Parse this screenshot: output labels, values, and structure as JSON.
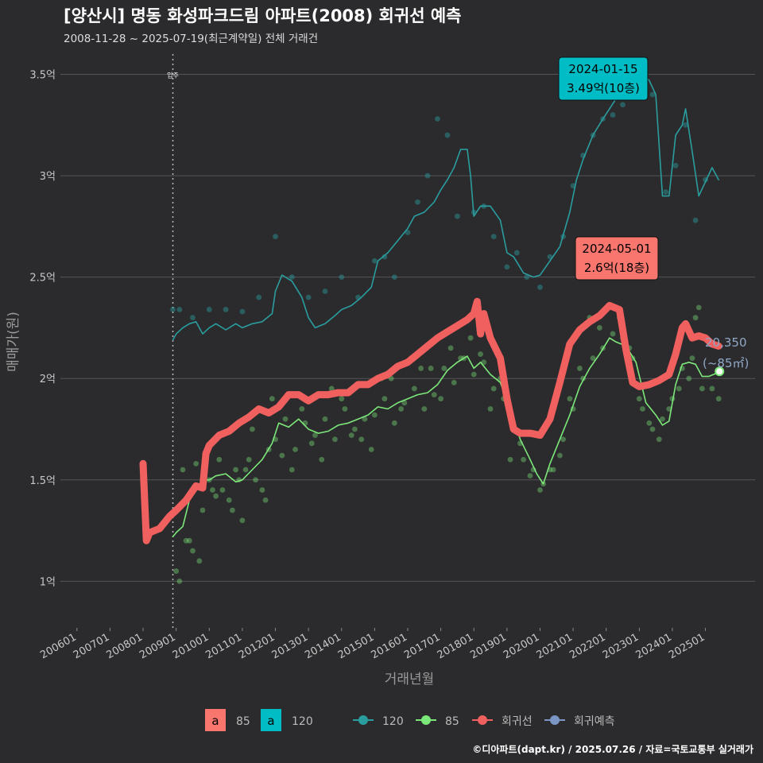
{
  "title": "[양산시] 명동 화성파크드림 아파트(2008) 회귀선 예측",
  "subtitle": "2008-11-28 ~ 2025-07-19(최근계약일) 전체 거래건",
  "caption": "©디아파트(dapt.kr) / 2025.07.26 / 자료=국토교통부 실거래가",
  "colors": {
    "background": "#2b2b2d",
    "series_120": "#2a9d9f",
    "series_85": "#7de87a",
    "regression": "#f0605e",
    "forecast": "#7b96c4",
    "ann_120": "#00bcc4",
    "ann_85": "#f8766d"
  },
  "chart_data": {
    "type": "line",
    "xlabel": "거래년월",
    "ylabel": "매매가(원)",
    "x_ticks": [
      "200601",
      "200701",
      "200801",
      "200901",
      "201001",
      "201101",
      "201201",
      "201301",
      "201401",
      "201501",
      "201601",
      "201701",
      "201801",
      "201901",
      "202001",
      "202101",
      "202201",
      "202301",
      "202401",
      "202501"
    ],
    "y_ticks": [
      {
        "value": 1.0,
        "label": "1억"
      },
      {
        "value": 1.5,
        "label": "1.5억"
      },
      {
        "value": 2.0,
        "label": "2억"
      },
      {
        "value": 2.5,
        "label": "2.5억"
      },
      {
        "value": 3.0,
        "label": "3억"
      },
      {
        "value": 3.5,
        "label": "3.5억"
      }
    ],
    "xlim": [
      2005.5,
      2026.5
    ],
    "ylim": [
      0.77,
      3.6
    ],
    "move_in": {
      "x": 2008.9,
      "label": "입주"
    },
    "series": [
      {
        "name": "120",
        "x": [
          2008.9,
          2009.0,
          2009.2,
          2009.4,
          2009.6,
          2009.8,
          2010.0,
          2010.2,
          2010.5,
          2010.8,
          2011.0,
          2011.3,
          2011.6,
          2011.9,
          2012.0,
          2012.2,
          2012.5,
          2012.8,
          2013.0,
          2013.2,
          2013.5,
          2013.8,
          2014.0,
          2014.3,
          2014.6,
          2014.9,
          2015.1,
          2015.4,
          2015.7,
          2016.0,
          2016.2,
          2016.5,
          2016.8,
          2017.0,
          2017.2,
          2017.4,
          2017.6,
          2017.8,
          2017.9,
          2018.0,
          2018.2,
          2018.5,
          2018.8,
          2019.0,
          2019.2,
          2019.5,
          2019.8,
          2020.0,
          2020.3,
          2020.6,
          2020.9,
          2021.1,
          2021.3,
          2021.6,
          2021.9,
          2022.1,
          2022.3,
          2022.5,
          2022.8,
          2023.0,
          2023.3,
          2023.5,
          2023.7,
          2023.9,
          2024.0,
          2024.1,
          2024.3,
          2024.4,
          2024.6,
          2024.8,
          2025.0,
          2025.2,
          2025.4
        ],
        "y": [
          2.19,
          2.22,
          2.25,
          2.27,
          2.28,
          2.22,
          2.25,
          2.27,
          2.24,
          2.27,
          2.25,
          2.27,
          2.28,
          2.32,
          2.43,
          2.51,
          2.48,
          2.4,
          2.3,
          2.25,
          2.27,
          2.31,
          2.34,
          2.36,
          2.4,
          2.45,
          2.58,
          2.62,
          2.68,
          2.74,
          2.8,
          2.82,
          2.87,
          2.93,
          2.98,
          3.04,
          3.13,
          3.13,
          3.0,
          2.8,
          2.85,
          2.85,
          2.78,
          2.62,
          2.6,
          2.52,
          2.5,
          2.51,
          2.58,
          2.65,
          2.82,
          2.98,
          3.08,
          3.2,
          3.28,
          3.33,
          3.38,
          3.46,
          3.5,
          3.52,
          3.47,
          3.4,
          2.9,
          2.9,
          3.05,
          3.2,
          3.25,
          3.33,
          3.12,
          2.9,
          2.97,
          3.04,
          2.98
        ]
      },
      {
        "name": "85",
        "x": [
          2008.9,
          2009.0,
          2009.2,
          2009.4,
          2009.6,
          2009.8,
          2010.0,
          2010.2,
          2010.5,
          2010.8,
          2011.0,
          2011.3,
          2011.6,
          2011.9,
          2012.1,
          2012.4,
          2012.7,
          2013.0,
          2013.3,
          2013.6,
          2013.9,
          2014.2,
          2014.5,
          2014.8,
          2015.1,
          2015.4,
          2015.7,
          2016.0,
          2016.3,
          2016.6,
          2016.9,
          2017.2,
          2017.5,
          2017.8,
          2018.0,
          2018.2,
          2018.5,
          2018.8,
          2019.1,
          2019.4,
          2019.7,
          2019.9,
          2020.1,
          2020.3,
          2020.6,
          2020.9,
          2021.2,
          2021.5,
          2021.8,
          2022.1,
          2022.3,
          2022.6,
          2022.9,
          2023.2,
          2023.5,
          2023.7,
          2023.9,
          2024.1,
          2024.3,
          2024.5,
          2024.7,
          2024.9,
          2025.1,
          2025.4
        ],
        "y": [
          1.22,
          1.24,
          1.27,
          1.4,
          1.45,
          1.5,
          1.5,
          1.52,
          1.53,
          1.49,
          1.5,
          1.55,
          1.6,
          1.68,
          1.78,
          1.76,
          1.8,
          1.75,
          1.73,
          1.74,
          1.77,
          1.78,
          1.8,
          1.82,
          1.86,
          1.85,
          1.88,
          1.9,
          1.92,
          1.93,
          1.97,
          2.04,
          2.08,
          2.11,
          2.05,
          2.08,
          2.02,
          1.98,
          1.85,
          1.7,
          1.6,
          1.53,
          1.48,
          1.58,
          1.7,
          1.82,
          1.96,
          2.05,
          2.12,
          2.2,
          2.18,
          2.16,
          2.08,
          1.88,
          1.82,
          1.77,
          1.79,
          1.97,
          2.07,
          2.08,
          2.07,
          2.01,
          2.01,
          2.03
        ]
      },
      {
        "name": "회귀선",
        "x": [
          2008.0,
          2008.1,
          2008.2,
          2008.5,
          2008.8,
          2009.0,
          2009.3,
          2009.6,
          2009.8,
          2009.9,
          2010.0,
          2010.3,
          2010.6,
          2010.9,
          2011.2,
          2011.5,
          2011.8,
          2012.1,
          2012.4,
          2012.7,
          2013.0,
          2013.3,
          2013.6,
          2013.9,
          2014.2,
          2014.5,
          2014.8,
          2015.1,
          2015.4,
          2015.7,
          2016.0,
          2016.3,
          2016.6,
          2016.9,
          2017.2,
          2017.5,
          2017.8,
          2018.0,
          2018.1,
          2018.2,
          2018.3,
          2018.5,
          2018.8,
          2019.0,
          2019.2,
          2019.4,
          2019.7,
          2020.0,
          2020.3,
          2020.6,
          2020.9,
          2021.2,
          2021.5,
          2021.8,
          2022.1,
          2022.4,
          2022.6,
          2022.8,
          2023.0,
          2023.3,
          2023.6,
          2023.9,
          2024.1,
          2024.3,
          2024.4,
          2024.6,
          2024.8,
          2025.0,
          2025.2,
          2025.4
        ],
        "y": [
          1.58,
          1.2,
          1.24,
          1.26,
          1.32,
          1.35,
          1.4,
          1.47,
          1.46,
          1.63,
          1.67,
          1.72,
          1.74,
          1.78,
          1.81,
          1.85,
          1.83,
          1.86,
          1.92,
          1.92,
          1.89,
          1.92,
          1.92,
          1.93,
          1.93,
          1.97,
          1.97,
          2.0,
          2.02,
          2.06,
          2.08,
          2.12,
          2.16,
          2.2,
          2.23,
          2.26,
          2.29,
          2.32,
          2.38,
          2.22,
          2.32,
          2.2,
          2.1,
          1.9,
          1.75,
          1.73,
          1.73,
          1.72,
          1.8,
          1.98,
          2.17,
          2.24,
          2.28,
          2.31,
          2.36,
          2.34,
          2.14,
          1.98,
          1.96,
          1.97,
          1.99,
          2.02,
          2.12,
          2.25,
          2.27,
          2.2,
          2.21,
          2.2,
          2.17,
          2.16
        ]
      },
      {
        "name": "회귀예측",
        "x": [],
        "y": []
      }
    ],
    "scatter": {
      "x": [
        2009.0,
        2009.2,
        2009.4,
        2009.6,
        2009.8,
        2010.0,
        2010.2,
        2010.4,
        2010.6,
        2010.8,
        2011.0,
        2011.2,
        2011.4,
        2011.6,
        2011.8,
        2012.0,
        2012.3,
        2012.6,
        2012.9,
        2013.2,
        2013.5,
        2013.8,
        2014.1,
        2014.4,
        2014.7,
        2015.0,
        2015.3,
        2015.6,
        2015.9,
        2016.2,
        2016.5,
        2016.8,
        2017.1,
        2017.4,
        2017.7,
        2018.0,
        2018.3,
        2018.6,
        2018.9,
        2019.2,
        2019.5,
        2019.8,
        2020.1,
        2020.4,
        2020.7,
        2021.0,
        2021.3,
        2021.6,
        2021.9,
        2022.2,
        2022.5,
        2022.8,
        2023.1,
        2023.4,
        2023.7,
        2024.0,
        2024.3,
        2024.6,
        2024.9,
        2025.2,
        2009.1,
        2009.5,
        2010.1,
        2010.7,
        2011.1,
        2011.7,
        2012.2,
        2012.8,
        2013.4,
        2014.0,
        2014.6,
        2015.2,
        2015.8,
        2016.4,
        2017.0,
        2017.6,
        2018.2,
        2018.8,
        2019.4,
        2020.0,
        2020.6,
        2021.2,
        2021.8,
        2022.4,
        2023.0,
        2023.6,
        2024.2,
        2024.8,
        2025.4,
        2009.3,
        2010.3,
        2011.3,
        2012.5,
        2013.7,
        2014.9,
        2016.1,
        2017.3,
        2018.5,
        2019.7,
        2020.9,
        2022.1,
        2023.3,
        2024.5,
        2009.7,
        2011.9,
        2014.3,
        2016.7,
        2019.1,
        2021.5,
        2023.9,
        2010.9,
        2013.1,
        2015.5,
        2017.9,
        2020.3,
        2022.7,
        2024.7
      ],
      "y": [
        1.05,
        1.55,
        1.2,
        1.58,
        1.35,
        1.5,
        1.42,
        1.45,
        1.4,
        1.55,
        1.3,
        1.6,
        1.5,
        1.45,
        1.65,
        1.7,
        1.8,
        1.65,
        1.78,
        1.72,
        1.8,
        1.7,
        1.85,
        1.75,
        1.8,
        1.82,
        1.9,
        1.78,
        1.88,
        1.95,
        1.85,
        1.92,
        2.05,
        1.98,
        2.1,
        2.02,
        2.08,
        1.95,
        1.9,
        1.75,
        1.6,
        1.55,
        1.48,
        1.55,
        1.7,
        1.85,
        2.0,
        2.1,
        2.15,
        2.22,
        2.2,
        2.1,
        1.85,
        1.75,
        1.8,
        1.9,
        2.05,
        2.1,
        1.95,
        1.95,
        1.0,
        1.15,
        1.45,
        1.35,
        1.55,
        1.4,
        1.62,
        1.85,
        1.6,
        1.9,
        1.7,
        2.0,
        1.85,
        2.05,
        1.9,
        2.1,
        2.12,
        2.0,
        1.68,
        1.45,
        1.62,
        2.05,
        2.25,
        2.3,
        1.9,
        1.7,
        1.95,
        2.35,
        1.9,
        1.2,
        1.6,
        1.75,
        1.55,
        1.95,
        1.65,
        2.1,
        2.15,
        1.85,
        1.52,
        1.9,
        2.35,
        1.78,
        2.0,
        1.1,
        1.9,
        1.72,
        2.05,
        1.6,
        2.3,
        1.85,
        1.5,
        1.68,
        2.0,
        2.2,
        1.55,
        2.15,
        2.3
      ]
    },
    "scatter_120": {
      "x": [
        2008.9,
        2009.1,
        2009.5,
        2010.0,
        2010.5,
        2011.0,
        2011.5,
        2012.0,
        2012.5,
        2013.0,
        2013.5,
        2014.0,
        2014.5,
        2015.0,
        2015.3,
        2015.6,
        2016.0,
        2016.3,
        2016.6,
        2016.9,
        2017.2,
        2017.5,
        2018.0,
        2018.3,
        2018.6,
        2019.0,
        2019.3,
        2019.6,
        2020.0,
        2020.3,
        2020.7,
        2021.0,
        2021.3,
        2021.6,
        2021.9,
        2022.2,
        2022.5,
        2022.8,
        2023.0,
        2023.4,
        2023.8,
        2024.1,
        2024.4,
        2024.7,
        2025.0
      ],
      "y": [
        2.34,
        2.34,
        2.3,
        2.34,
        2.34,
        2.33,
        2.4,
        2.7,
        2.5,
        2.4,
        2.43,
        2.5,
        2.4,
        2.58,
        2.6,
        2.5,
        2.72,
        2.87,
        3.0,
        3.28,
        3.2,
        2.8,
        2.82,
        2.85,
        2.7,
        2.55,
        2.62,
        2.5,
        2.45,
        2.6,
        2.7,
        2.95,
        3.1,
        3.2,
        3.28,
        3.3,
        3.35,
        3.45,
        3.5,
        3.4,
        2.92,
        3.05,
        3.25,
        2.78,
        2.98
      ]
    },
    "annotations": [
      {
        "date": "2024-01-15",
        "price": "3.49억(10층)",
        "series": "120"
      },
      {
        "date": "2024-05-01",
        "price": "2.6억(18층)",
        "series": "85"
      }
    ],
    "last_point": {
      "value": "20,350",
      "area": "(~85㎡)"
    },
    "legend": {
      "box_items": [
        {
          "key": "a",
          "label": "85"
        },
        {
          "key": "a",
          "label": "120"
        }
      ],
      "line_items": [
        {
          "label": "120"
        },
        {
          "label": "85"
        },
        {
          "label": "회귀선"
        },
        {
          "label": "회귀예측"
        }
      ],
      "placement": "bottom"
    },
    "grid": true
  }
}
